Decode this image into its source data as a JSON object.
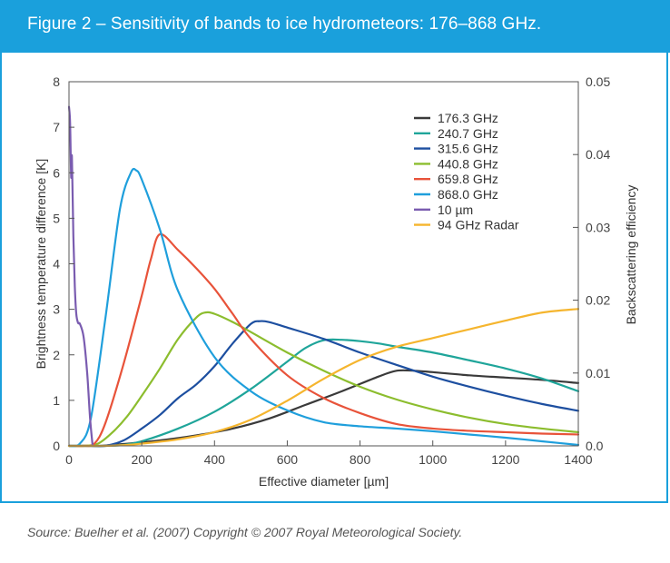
{
  "header": {
    "title": "Figure 2 – Sensitivity of bands to ice hydrometeors: 176–868 GHz."
  },
  "source": "Source: Buelher et al. (2007) Copyright © 2007 Royal Meteorological Society.",
  "chart_data": {
    "type": "line",
    "title": "Figure 2 – Sensitivity of bands to ice hydrometeors: 176–868 GHz.",
    "xlabel": "Effective diameter [µm]",
    "ylabel": "Brightness temperature difference [K]",
    "y2label": "Backscattering efficiency",
    "xlim": [
      0,
      1400
    ],
    "ylim": [
      0,
      8
    ],
    "y2lim": [
      0,
      0.05
    ],
    "x_ticks": [
      "0",
      "200",
      "400",
      "600",
      "800",
      "1000",
      "1200",
      "1400"
    ],
    "y_ticks": [
      "0",
      "1",
      "2",
      "3",
      "4",
      "5",
      "6",
      "7",
      "8"
    ],
    "y2_ticks": [
      "0.0",
      "0.01",
      "0.02",
      "0.03",
      "0.04",
      "0.05"
    ],
    "legend_position": "top-right",
    "series": [
      {
        "name": "176.3 GHz",
        "color": "#3a3a3a",
        "axis": "left",
        "x": [
          0,
          50,
          80,
          150,
          250,
          350,
          450,
          550,
          650,
          750,
          850,
          900,
          950,
          1000,
          1100,
          1200,
          1300,
          1400
        ],
        "y": [
          0,
          0,
          0,
          0.04,
          0.12,
          0.23,
          0.38,
          0.6,
          0.9,
          1.2,
          1.52,
          1.65,
          1.65,
          1.62,
          1.55,
          1.5,
          1.45,
          1.38
        ]
      },
      {
        "name": "240.7 GHz",
        "color": "#1fa59a",
        "axis": "left",
        "x": [
          0,
          50,
          100,
          150,
          200,
          300,
          400,
          500,
          600,
          650,
          700,
          750,
          800,
          850,
          900,
          1000,
          1100,
          1200,
          1300,
          1400
        ],
        "y": [
          0,
          0,
          0,
          0.02,
          0.1,
          0.38,
          0.75,
          1.25,
          1.85,
          2.15,
          2.32,
          2.33,
          2.3,
          2.25,
          2.18,
          2.05,
          1.88,
          1.7,
          1.48,
          1.2
        ]
      },
      {
        "name": "315.6 GHz",
        "color": "#1d4fa0",
        "axis": "left",
        "x": [
          0,
          60,
          100,
          150,
          200,
          250,
          300,
          350,
          400,
          450,
          500,
          525,
          550,
          600,
          700,
          800,
          900,
          1000,
          1100,
          1200,
          1300,
          1400
        ],
        "y": [
          0,
          0,
          0,
          0.12,
          0.38,
          0.68,
          1.05,
          1.35,
          1.75,
          2.25,
          2.68,
          2.74,
          2.72,
          2.6,
          2.35,
          2.05,
          1.78,
          1.52,
          1.3,
          1.1,
          0.92,
          0.77
        ]
      },
      {
        "name": "440.8 GHz",
        "color": "#8cbd2e",
        "axis": "left",
        "x": [
          0,
          40,
          80,
          120,
          160,
          200,
          250,
          300,
          350,
          375,
          400,
          450,
          500,
          600,
          700,
          800,
          900,
          1000,
          1100,
          1200,
          1300,
          1400
        ],
        "y": [
          0,
          0,
          0.05,
          0.3,
          0.65,
          1.1,
          1.7,
          2.35,
          2.82,
          2.93,
          2.9,
          2.72,
          2.5,
          2.05,
          1.65,
          1.3,
          1.02,
          0.8,
          0.62,
          0.48,
          0.38,
          0.3
        ]
      },
      {
        "name": "659.8 GHz",
        "color": "#e8533a",
        "axis": "left",
        "x": [
          0,
          40,
          70,
          100,
          150,
          200,
          225,
          250,
          300,
          350,
          400,
          450,
          500,
          600,
          700,
          800,
          900,
          1000,
          1100,
          1200,
          1300,
          1400
        ],
        "y": [
          0,
          0,
          0.05,
          0.5,
          1.8,
          3.3,
          4.1,
          4.65,
          4.3,
          3.9,
          3.45,
          2.9,
          2.35,
          1.55,
          1.05,
          0.72,
          0.48,
          0.38,
          0.33,
          0.3,
          0.27,
          0.25
        ]
      },
      {
        "name": "868.0 GHz",
        "color": "#1f9fdc",
        "axis": "left",
        "x": [
          0,
          30,
          60,
          100,
          140,
          170,
          185,
          200,
          250,
          300,
          400,
          500,
          600,
          700,
          800,
          900,
          1000,
          1100,
          1200,
          1300,
          1400
        ],
        "y": [
          0,
          0.05,
          0.6,
          2.8,
          5.2,
          6.0,
          6.05,
          5.85,
          4.75,
          3.4,
          1.95,
          1.2,
          0.78,
          0.52,
          0.43,
          0.38,
          0.32,
          0.25,
          0.18,
          0.1,
          0.02
        ]
      },
      {
        "name": "10 µm",
        "color": "#7a5cb0",
        "axis": "left",
        "x": [
          0,
          3,
          6,
          8,
          12,
          16,
          20,
          25,
          30,
          40,
          50,
          58,
          65
        ],
        "y": [
          7.45,
          7.1,
          5.9,
          6.35,
          4.6,
          3.5,
          2.9,
          2.7,
          2.68,
          2.4,
          1.6,
          0.6,
          0
        ]
      },
      {
        "name": "94 GHz Radar",
        "color": "#f5b52e",
        "axis": "right",
        "x": [
          0,
          50,
          100,
          150,
          200,
          300,
          400,
          500,
          600,
          700,
          800,
          900,
          1000,
          1100,
          1200,
          1300,
          1400
        ],
        "y": [
          0,
          0,
          0,
          0.0001,
          0.0003,
          0.0009,
          0.0019,
          0.0036,
          0.0062,
          0.0092,
          0.0118,
          0.0136,
          0.0148,
          0.016,
          0.0172,
          0.0183,
          0.0188
        ]
      }
    ]
  }
}
